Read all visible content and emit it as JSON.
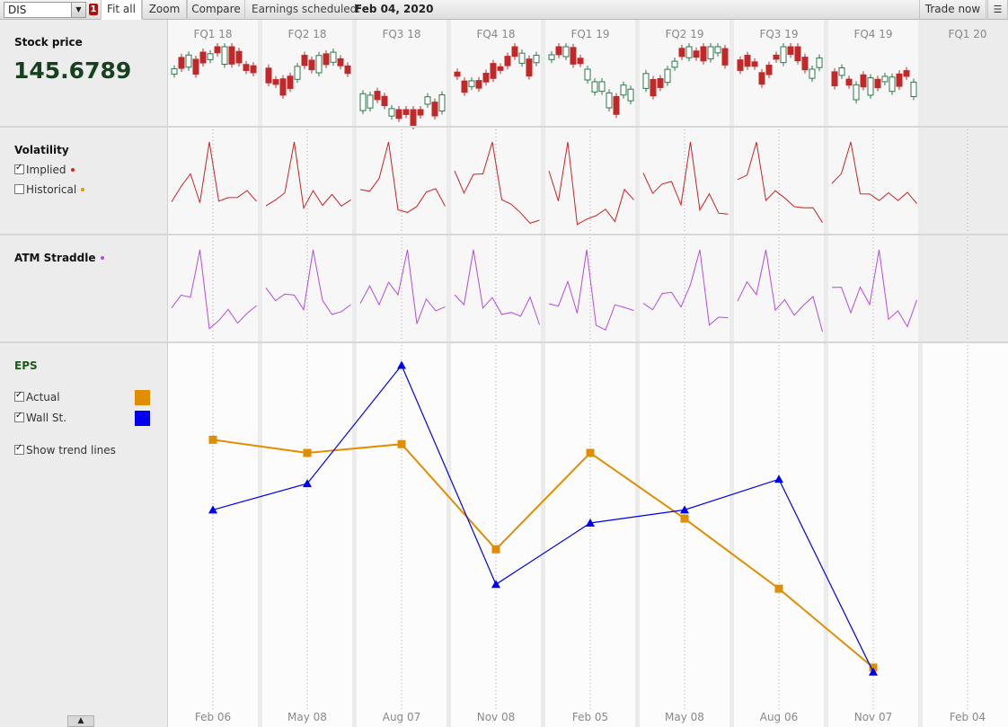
{
  "toolbar": {
    "symbol": "DIS",
    "badge": "1",
    "fit_all": "Fit all",
    "zoom": "Zoom",
    "compare": "Compare",
    "earnings_label": "Earnings scheduled:",
    "earnings_date": "Feb 04, 2020",
    "trade_now": "Trade now"
  },
  "stock": {
    "title": "Stock price",
    "price": "145.6789"
  },
  "volatility": {
    "title": "Volatility",
    "implied_label": "Implied",
    "implied_checked": true,
    "historical_label": "Historical",
    "historical_checked": false,
    "implied_color": "#e02020",
    "historical_color": "#e69500"
  },
  "straddle": {
    "title": "ATM Straddle",
    "color": "#b44be0"
  },
  "eps": {
    "title": "EPS",
    "actual_label": "Actual",
    "actual_checked": true,
    "wallst_label": "Wall St.",
    "wallst_checked": true,
    "trend_label": "Show trend lines",
    "trend_checked": true,
    "actual_color": "#e08e00",
    "wallst_color": "#0000ee"
  },
  "quarters": [
    "FQ1 18",
    "FQ2 18",
    "FQ3 18",
    "FQ4 18",
    "FQ1 19",
    "FQ2 19",
    "FQ3 19",
    "FQ4 19",
    "FQ1 20"
  ],
  "dates": [
    "Feb 06",
    "May 08",
    "Aug 07",
    "Nov 08",
    "Feb 05",
    "May 08",
    "Aug 06",
    "Nov 07",
    "Feb 04"
  ],
  "chart_data": {
    "type": "line",
    "title": "EPS",
    "categories": [
      "Feb 06",
      "May 08",
      "Aug 07",
      "Nov 08",
      "Feb 05",
      "May 08",
      "Aug 06",
      "Nov 07"
    ],
    "series": [
      {
        "name": "Actual",
        "color": "#e08e00",
        "marker": "square",
        "values": [
          0.89,
          0.86,
          0.88,
          0.64,
          0.86,
          0.71,
          0.55,
          0.37
        ]
      },
      {
        "name": "Wall St.",
        "color": "#0000ee",
        "marker": "triangle",
        "values": [
          0.73,
          0.79,
          1.06,
          0.56,
          0.7,
          0.73,
          0.8,
          0.36
        ]
      }
    ]
  }
}
